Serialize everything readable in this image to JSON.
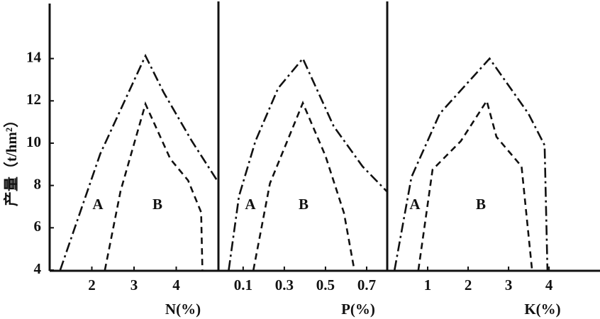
{
  "chart_data": [
    {
      "type": "line",
      "y_label": "产量（t/hm²）",
      "x_label": "N(%)",
      "xlim": [
        1,
        5
      ],
      "ylim": [
        4,
        16.6
      ],
      "xticks": [
        2,
        3,
        4
      ],
      "yticks": [
        4,
        6,
        8,
        10,
        12,
        14
      ],
      "annotations": [
        "A",
        "B"
      ],
      "series": [
        {
          "color": "#111111",
          "x": [
            1.25,
            2.2,
            3.27,
            3.7,
            4.37,
            5
          ],
          "values": [
            4,
            9.5,
            14.13,
            12.4,
            10.1,
            8.14
          ]
        },
        {
          "color": "#111111",
          "x": [
            2.31,
            2.68,
            3.27,
            3.86,
            4.28,
            4.59,
            4.62
          ],
          "values": [
            4,
            7.74,
            11.85,
            9.25,
            8.24,
            6.73,
            4
          ]
        }
      ]
    },
    {
      "type": "line",
      "x_label": "P(%)",
      "xlim": [
        -0.02,
        0.8
      ],
      "ylim": [
        4,
        16.6
      ],
      "xticks": [
        0.1,
        0.3,
        0.5,
        0.7
      ],
      "annotations": [
        "A",
        "B"
      ],
      "series": [
        {
          "color": "#111111",
          "x": [
            0.03,
            0.08,
            0.16,
            0.27,
            0.39,
            0.54,
            0.68,
            0.8
          ],
          "values": [
            4,
            7.5,
            10.1,
            12.6,
            14,
            10.8,
            8.9,
            7.7
          ]
        },
        {
          "color": "#111111",
          "x": [
            0.15,
            0.23,
            0.39,
            0.5,
            0.59,
            0.64
          ],
          "values": [
            4,
            8.1,
            11.9,
            9.4,
            6.7,
            4
          ]
        }
      ]
    },
    {
      "type": "line",
      "x_label": "K(%)",
      "xlim": [
        0,
        5.26
      ],
      "ylim": [
        4,
        16.6
      ],
      "xticks": [
        1,
        2,
        3,
        4
      ],
      "annotations": [
        "A",
        "B"
      ],
      "series": [
        {
          "color": "#111111",
          "x": [
            0.18,
            0.6,
            1.3,
            2.53,
            3.49,
            3.89,
            3.96
          ],
          "values": [
            4,
            8.4,
            11.4,
            14,
            11.4,
            9.9,
            4
          ]
        },
        {
          "color": "#111111",
          "x": [
            0.77,
            1.12,
            1.82,
            2.46,
            2.7,
            3.32,
            3.58
          ],
          "values": [
            4,
            8.75,
            10.1,
            12,
            10.3,
            8.9,
            4
          ]
        }
      ]
    }
  ]
}
